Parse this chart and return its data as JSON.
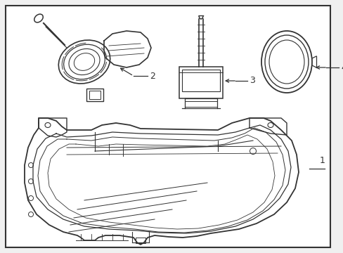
{
  "background_color": "#f0f0f0",
  "border_color": "#333333",
  "line_color": "#333333",
  "fig_width": 4.89,
  "fig_height": 3.6,
  "dpi": 100
}
